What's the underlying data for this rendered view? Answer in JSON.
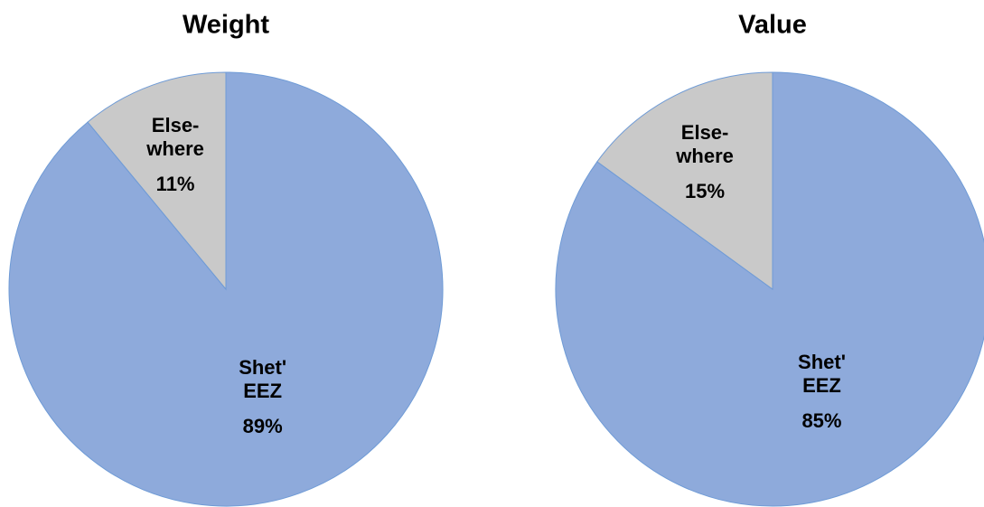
{
  "chart_data": [
    {
      "type": "pie",
      "title": "Weight",
      "categories": [
        "Shet'\nEEZ",
        "Else-\nwhere"
      ],
      "values": [
        89,
        11
      ],
      "value_labels": [
        "89%",
        "11%"
      ],
      "colors": [
        "#8eaadb",
        "#c9c9c9"
      ]
    },
    {
      "type": "pie",
      "title": "Value",
      "categories": [
        "Shet'\nEEZ",
        "Else-\nwhere"
      ],
      "values": [
        85,
        15
      ],
      "value_labels": [
        "85%",
        "15%"
      ],
      "colors": [
        "#8eaadb",
        "#c9c9c9"
      ]
    }
  ]
}
